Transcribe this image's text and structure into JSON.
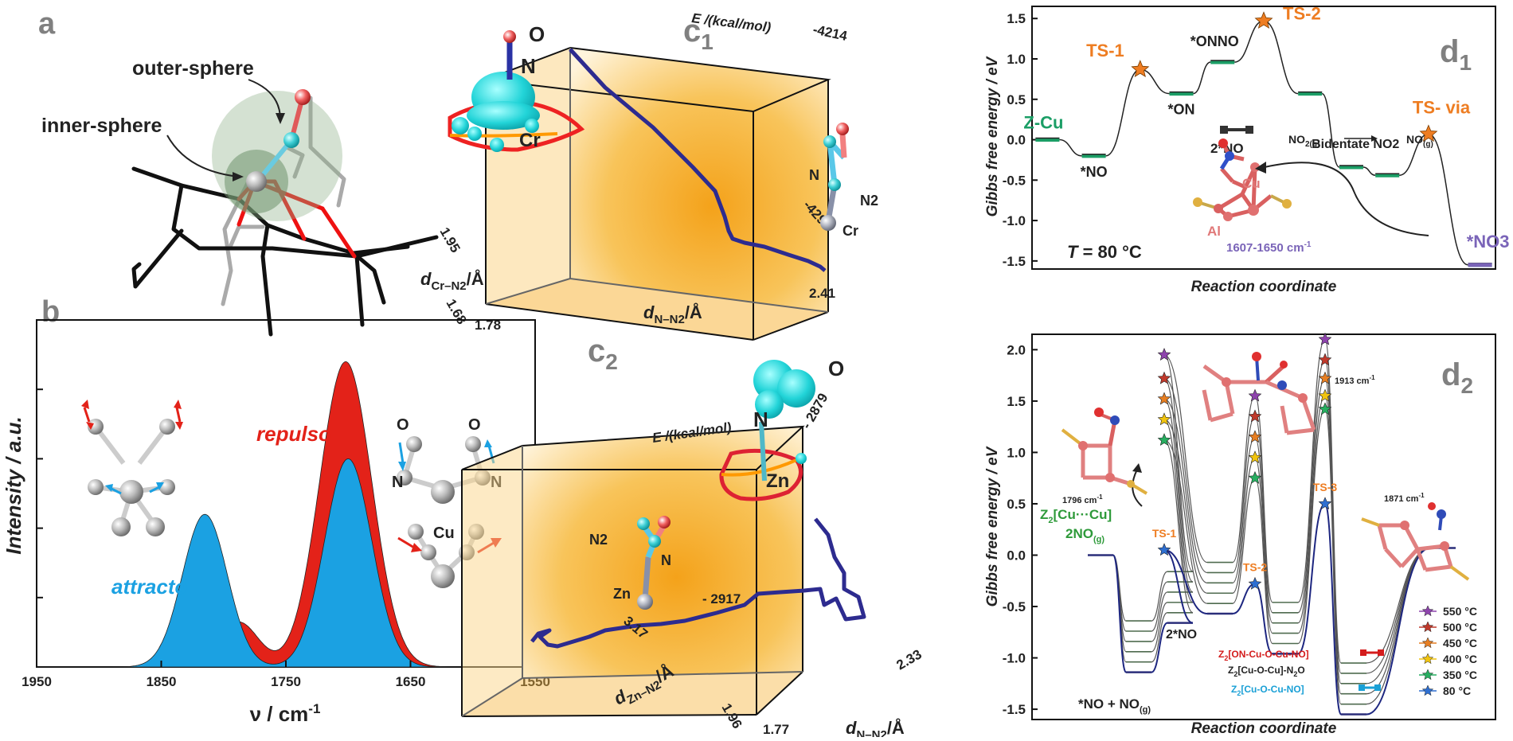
{
  "panels": {
    "a": "a",
    "b": "b",
    "c1": "c",
    "c1_sub": "1",
    "c2": "c",
    "c2_sub": "2",
    "d1": "d",
    "d1_sub": "1",
    "d2": "d",
    "d2_sub": "2"
  },
  "panel_a": {
    "outer": "outer-sphere",
    "inner": "inner-sphere"
  },
  "panel_c1": {
    "axis_e": "E /(kcal/mol)",
    "e_top": "-4214",
    "e_mid": "-4290",
    "d_cr_label": "d",
    "d_cr_sub": "Cr–N2",
    "d_cr_unit": "/Å",
    "d_cr_max": "1.95",
    "d_cr_min": "1.68",
    "d_nn_min": "1.78",
    "d_nn_max": "2.41",
    "d_nn_label": "d",
    "d_nn_sub": "N–N2",
    "d_nn_unit": "/Å",
    "O": "O",
    "N": "N",
    "Cr": "Cr",
    "N_r": "N",
    "N2_r": "N2",
    "Cr_r": "Cr"
  },
  "panel_c2": {
    "axis_e": "E /(kcal/mol)",
    "e_top": "- 2879",
    "e_mid": "- 2917",
    "d_zn_label": "d",
    "d_zn_sub": "Zn–N2",
    "d_zn_unit": "/Å",
    "d_zn_max": "3.17",
    "d_zn_min": "1.96",
    "d_nn_min": "1.77",
    "d_nn_max": "2.33",
    "d_nn_label": "d",
    "d_nn_sub": "N–N2",
    "d_nn_unit": "/Å",
    "O": "O",
    "N": "N",
    "Zn": "Zn",
    "N2_l": "N2",
    "N_l": "N",
    "Zn_l": "Zn"
  },
  "chart_data": [
    {
      "type": "area",
      "panel": "b",
      "xlabel": "ν / cm-1",
      "ylabel": "Intensity / a.u.",
      "xlim": [
        1950,
        1550
      ],
      "xticks": [
        1950,
        1850,
        1750,
        1650,
        1550
      ],
      "series": [
        {
          "name": "attracto",
          "color": "#1ba1e2",
          "peaks": [
            {
              "center": 1815,
              "height": 0.44,
              "width": 18
            },
            {
              "center": 1700,
              "height": 0.6,
              "width": 19
            }
          ]
        },
        {
          "name": "repulso",
          "color": "#e32219",
          "peaks": [
            {
              "center": 1788,
              "height": 0.13,
              "width": 16
            },
            {
              "center": 1702,
              "height": 0.88,
              "width": 21
            }
          ]
        }
      ],
      "annotations": {
        "O1": "O",
        "O2": "O",
        "N1": "N",
        "N2": "N",
        "Cu": "Cu"
      }
    },
    {
      "type": "line",
      "panel": "d1",
      "xlabel": "Reaction coordinate",
      "ylabel": "Gibbs free energy / eV",
      "ylim": [
        -1.6,
        1.65
      ],
      "yticks": [
        -1.5,
        -1.0,
        -0.5,
        0.0,
        0.5,
        1.0,
        1.5
      ],
      "ytick_labels": [
        "-1.5",
        "-1.0",
        "-0.5",
        "0.0",
        "0.5",
        "1.0",
        "1.5"
      ],
      "levels": [
        {
          "label": "Z-Cu",
          "x": 0.3,
          "y": 0.0,
          "kind": "min"
        },
        {
          "label": "*NO",
          "x": 1.2,
          "y": -0.2,
          "kind": "min"
        },
        {
          "label": "TS-1",
          "x": 2.1,
          "y": 0.87,
          "kind": "ts"
        },
        {
          "label": "*ON",
          "x": 2.9,
          "y": 0.57,
          "kind": "min"
        },
        {
          "label": "*ONNO",
          "x": 3.7,
          "y": 0.96,
          "kind": "min"
        },
        {
          "label": "TS-2",
          "x": 4.5,
          "y": 1.47,
          "kind": "ts"
        },
        {
          "label": "",
          "x": 5.4,
          "y": 0.57,
          "kind": "min"
        },
        {
          "label": "",
          "x": 6.2,
          "y": -0.34,
          "kind": "min"
        },
        {
          "label": "Bidentate NO2",
          "x": 6.9,
          "y": -0.44,
          "kind": "min"
        },
        {
          "label": "TS- via",
          "x": 7.7,
          "y": 0.07,
          "kind": "ts"
        },
        {
          "label": "*NO3",
          "x": 8.7,
          "y": -1.55,
          "kind": "min"
        }
      ],
      "texts": {
        "T": "T",
        "T_val": " = 80 °C",
        "no2": "NO",
        "no2_sub": "2(g)",
        "no": "NO",
        "no_sub": "(g)",
        "ir": "1607-1650 cm",
        "ir_sup": "-1",
        "twono": "2*NO",
        "Cu": "Cu",
        "Al": "Al"
      }
    },
    {
      "type": "line",
      "panel": "d2",
      "xlabel": "Reaction coordinate",
      "ylabel": "Gibbs free energy / eV",
      "ylim": [
        -1.6,
        2.15
      ],
      "yticks": [
        -1.5,
        -1.0,
        -0.5,
        0.0,
        0.5,
        1.0,
        1.5,
        2.0
      ],
      "ytick_labels": [
        "-1.5",
        "-1.0",
        "-0.5",
        "0.0",
        "0.5",
        "1.0",
        "1.5",
        "2.0"
      ],
      "series": [
        {
          "name": "550 °C",
          "color": "#8e44ad",
          "ts": [
            1.95,
            1.55,
            2.1
          ]
        },
        {
          "name": "500 °C",
          "color": "#c0392b",
          "ts": [
            1.72,
            1.35,
            1.9
          ]
        },
        {
          "name": "450 °C",
          "color": "#e67e22",
          "ts": [
            1.52,
            1.15,
            1.72
          ]
        },
        {
          "name": "400 °C",
          "color": "#f1c40f",
          "ts": [
            1.32,
            0.95,
            1.55
          ]
        },
        {
          "name": "350 °C",
          "color": "#27ae60",
          "ts": [
            1.12,
            0.75,
            1.42
          ]
        },
        {
          "name": "80 °C",
          "color": "#2e6fd1",
          "ts": [
            0.05,
            -0.28,
            0.5
          ]
        }
      ],
      "levels_80": [
        0.0,
        -1.14,
        -0.66,
        -0.57,
        -0.96,
        -1.55,
        0.07
      ],
      "ts_labels": [
        "TS-1",
        "TS-2",
        "TS-3"
      ],
      "texts": {
        "zcu": "Z",
        "zcu_sub": "2",
        "zcu_rest": "[Cu···Cu]",
        "no2g": "2NO",
        "no2g_sub": "(g)",
        "noplus": "*NO + NO",
        "noplus_sub": "(g)",
        "twono": "2*NO",
        "z1": "Z",
        "z1_sub": "2",
        "z1_rest": "[ON-Cu-O-Cu-NO]",
        "z2": "Z",
        "z2_sub": "2",
        "z2_rest": "[Cu-O-Cu]-N",
        "z2_sub2": "2",
        "z2_end": "O",
        "z3": "Z",
        "z3_sub": "2",
        "z3_rest": "[Cu-O-Cu-NO]",
        "ir1": "1796 cm",
        "ir2": "1913 cm",
        "ir3": "1871 cm",
        "ir_sup": "-1"
      }
    }
  ]
}
